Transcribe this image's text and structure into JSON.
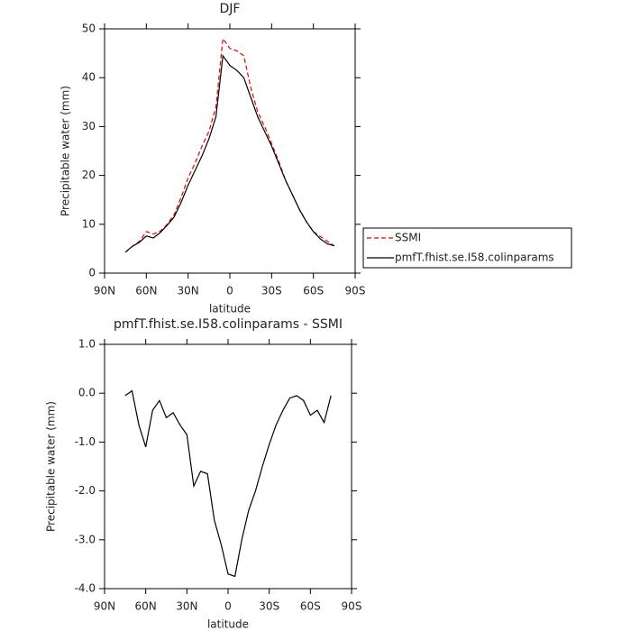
{
  "chart_data": [
    {
      "type": "line",
      "title": "DJF",
      "x_label": "latitude",
      "y_label": "Precipitable water (mm)",
      "x": [
        75,
        70,
        65,
        60,
        55,
        50,
        45,
        40,
        35,
        30,
        25,
        20,
        15,
        10,
        5,
        0,
        -5,
        -10,
        -15,
        -20,
        -25,
        -30,
        -35,
        -40,
        -45,
        -50,
        -55,
        -60,
        -65,
        -70,
        -75
      ],
      "series": [
        {
          "name": "SSMI",
          "color": "#e00000",
          "dash": true,
          "values": [
            4.3,
            5.5,
            6.5,
            8.5,
            8,
            8.6,
            10,
            12,
            15.5,
            19.5,
            22.5,
            26,
            29,
            34,
            48,
            46,
            45.5,
            44.5,
            38,
            33,
            30,
            26.5,
            23,
            19,
            16,
            13,
            10.5,
            8.5,
            7.5,
            6.5,
            5.6
          ]
        },
        {
          "name": "pmfT.fhist.se.I58.colinparams",
          "color": "#000000",
          "dash": false,
          "values": [
            4.3,
            5.5,
            6.3,
            7.6,
            7.2,
            8.3,
            9.8,
            11.5,
            14.5,
            18,
            21,
            24,
            27.5,
            32,
            44.5,
            42.5,
            41.5,
            40,
            36,
            32,
            29,
            26,
            22.5,
            19,
            16,
            13,
            10.5,
            8.5,
            7,
            6,
            5.6
          ]
        }
      ],
      "xlim": [
        90,
        -90
      ],
      "xticks": [
        {
          "value": 90,
          "label": "90N"
        },
        {
          "value": 60,
          "label": "60N"
        },
        {
          "value": 30,
          "label": "30N"
        },
        0,
        {
          "value": -30,
          "label": "30S"
        },
        {
          "value": -60,
          "label": "60S"
        },
        {
          "value": -90,
          "label": "90S"
        }
      ],
      "ylim": [
        0,
        50
      ],
      "yticks": [
        0,
        10,
        20,
        30,
        40,
        50
      ]
    },
    {
      "type": "line",
      "title": "pmfT.fhist.se.I58.colinparams - SSMI",
      "x_label": "latitude",
      "y_label": "Precipitable water (mm)",
      "x": [
        75,
        70,
        65,
        60,
        55,
        50,
        45,
        40,
        35,
        30,
        25,
        20,
        15,
        10,
        5,
        0,
        -5,
        -10,
        -15,
        -20,
        -25,
        -30,
        -35,
        -40,
        -45,
        -50,
        -55,
        -60,
        -65,
        -70,
        -75
      ],
      "color": "#000000",
      "values": [
        -0.05,
        0.05,
        -0.65,
        -1.1,
        -0.35,
        -0.15,
        -0.5,
        -0.4,
        -0.65,
        -0.85,
        -1.9,
        -1.6,
        -1.65,
        -2.6,
        -3.1,
        -3.7,
        -3.75,
        -3.0,
        -2.4,
        -2.0,
        -1.5,
        -1.05,
        -0.65,
        -0.35,
        -0.1,
        -0.05,
        -0.15,
        -0.45,
        -0.35,
        -0.6,
        -0.05
      ],
      "xlim": [
        90,
        -90
      ],
      "xticks": [
        {
          "value": 90,
          "label": "90N"
        },
        {
          "value": 60,
          "label": "60N"
        },
        {
          "value": 30,
          "label": "30N"
        },
        0,
        {
          "value": -30,
          "label": "30S"
        },
        {
          "value": -60,
          "label": "60S"
        },
        {
          "value": -90,
          "label": "90S"
        }
      ],
      "ylim": [
        -4,
        1
      ],
      "yticks": [
        {
          "value": -4,
          "label": "-4.0"
        },
        {
          "value": -3,
          "label": "-3.0"
        },
        {
          "value": -2,
          "label": "-2.0"
        },
        {
          "value": -1,
          "label": "-1.0"
        },
        {
          "value": 0,
          "label": "0.0"
        },
        {
          "value": 1,
          "label": "1.0"
        }
      ]
    }
  ]
}
